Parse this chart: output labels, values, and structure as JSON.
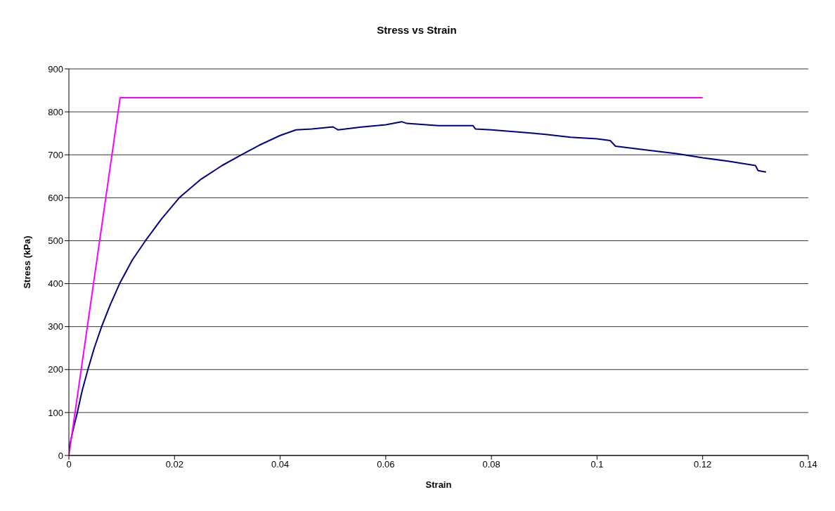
{
  "chart_data": {
    "type": "line",
    "title": "Stress vs Strain",
    "xlabel": "Strain",
    "ylabel": "Stress (kPa)",
    "xlim": [
      0,
      0.14
    ],
    "xticks": [
      0,
      0.02,
      0.04,
      0.06,
      0.08,
      0.1,
      0.12,
      0.14
    ],
    "ylim": [
      0,
      900
    ],
    "yticks": [
      0,
      100,
      200,
      300,
      400,
      500,
      600,
      700,
      800,
      900
    ],
    "grid": "y",
    "marker": "none",
    "line_style": "solid",
    "series": [
      {
        "color": "#000080",
        "x": [
          0,
          0.0008,
          0.0016,
          0.0025,
          0.0036,
          0.0048,
          0.0062,
          0.0078,
          0.0096,
          0.012,
          0.0145,
          0.0175,
          0.0209,
          0.025,
          0.029,
          0.0327,
          0.036,
          0.04,
          0.043,
          0.046,
          0.05,
          0.051,
          0.055,
          0.06,
          0.063,
          0.064,
          0.07,
          0.0765,
          0.077,
          0.08,
          0.085,
          0.09,
          0.095,
          0.1,
          0.1025,
          0.1035,
          0.11,
          0.115,
          0.12,
          0.125,
          0.13,
          0.1305,
          0.132
        ],
        "values": [
          15,
          60,
          100,
          150,
          200,
          250,
          300,
          350,
          400,
          455,
          500,
          550,
          600,
          643,
          675,
          700,
          722,
          745,
          758,
          760,
          765,
          758,
          764,
          770,
          777,
          773,
          768,
          768,
          760,
          758,
          753,
          748,
          741,
          737,
          733,
          720,
          710,
          703,
          693,
          685,
          675,
          663,
          660
        ]
      },
      {
        "color": "#ff00ff",
        "x": [
          0,
          0.0097,
          0.12
        ],
        "values": [
          0,
          833,
          833
        ]
      }
    ]
  }
}
